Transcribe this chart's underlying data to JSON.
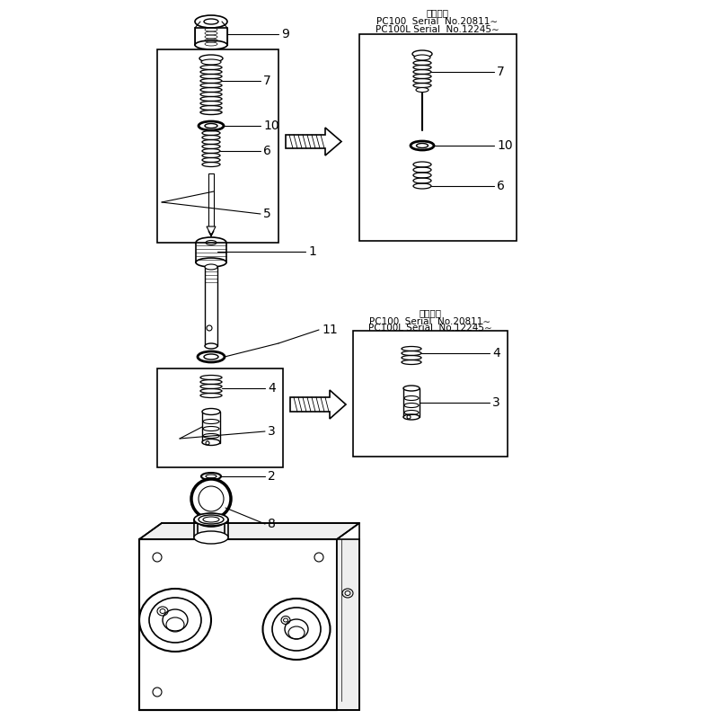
{
  "bg_color": "#ffffff",
  "line_color": "#000000",
  "inset1_title_line1": "適用号機",
  "inset1_title_line2": "PC100  Serial  No.20811∼",
  "inset1_title_line3": "PC100L Serial  No.12245∼",
  "inset2_title_line1": "適用号機",
  "inset2_title_line2": "PC100  Serial  No.20811∼",
  "inset2_title_line3": "PC100L Serial  No.12245∼"
}
